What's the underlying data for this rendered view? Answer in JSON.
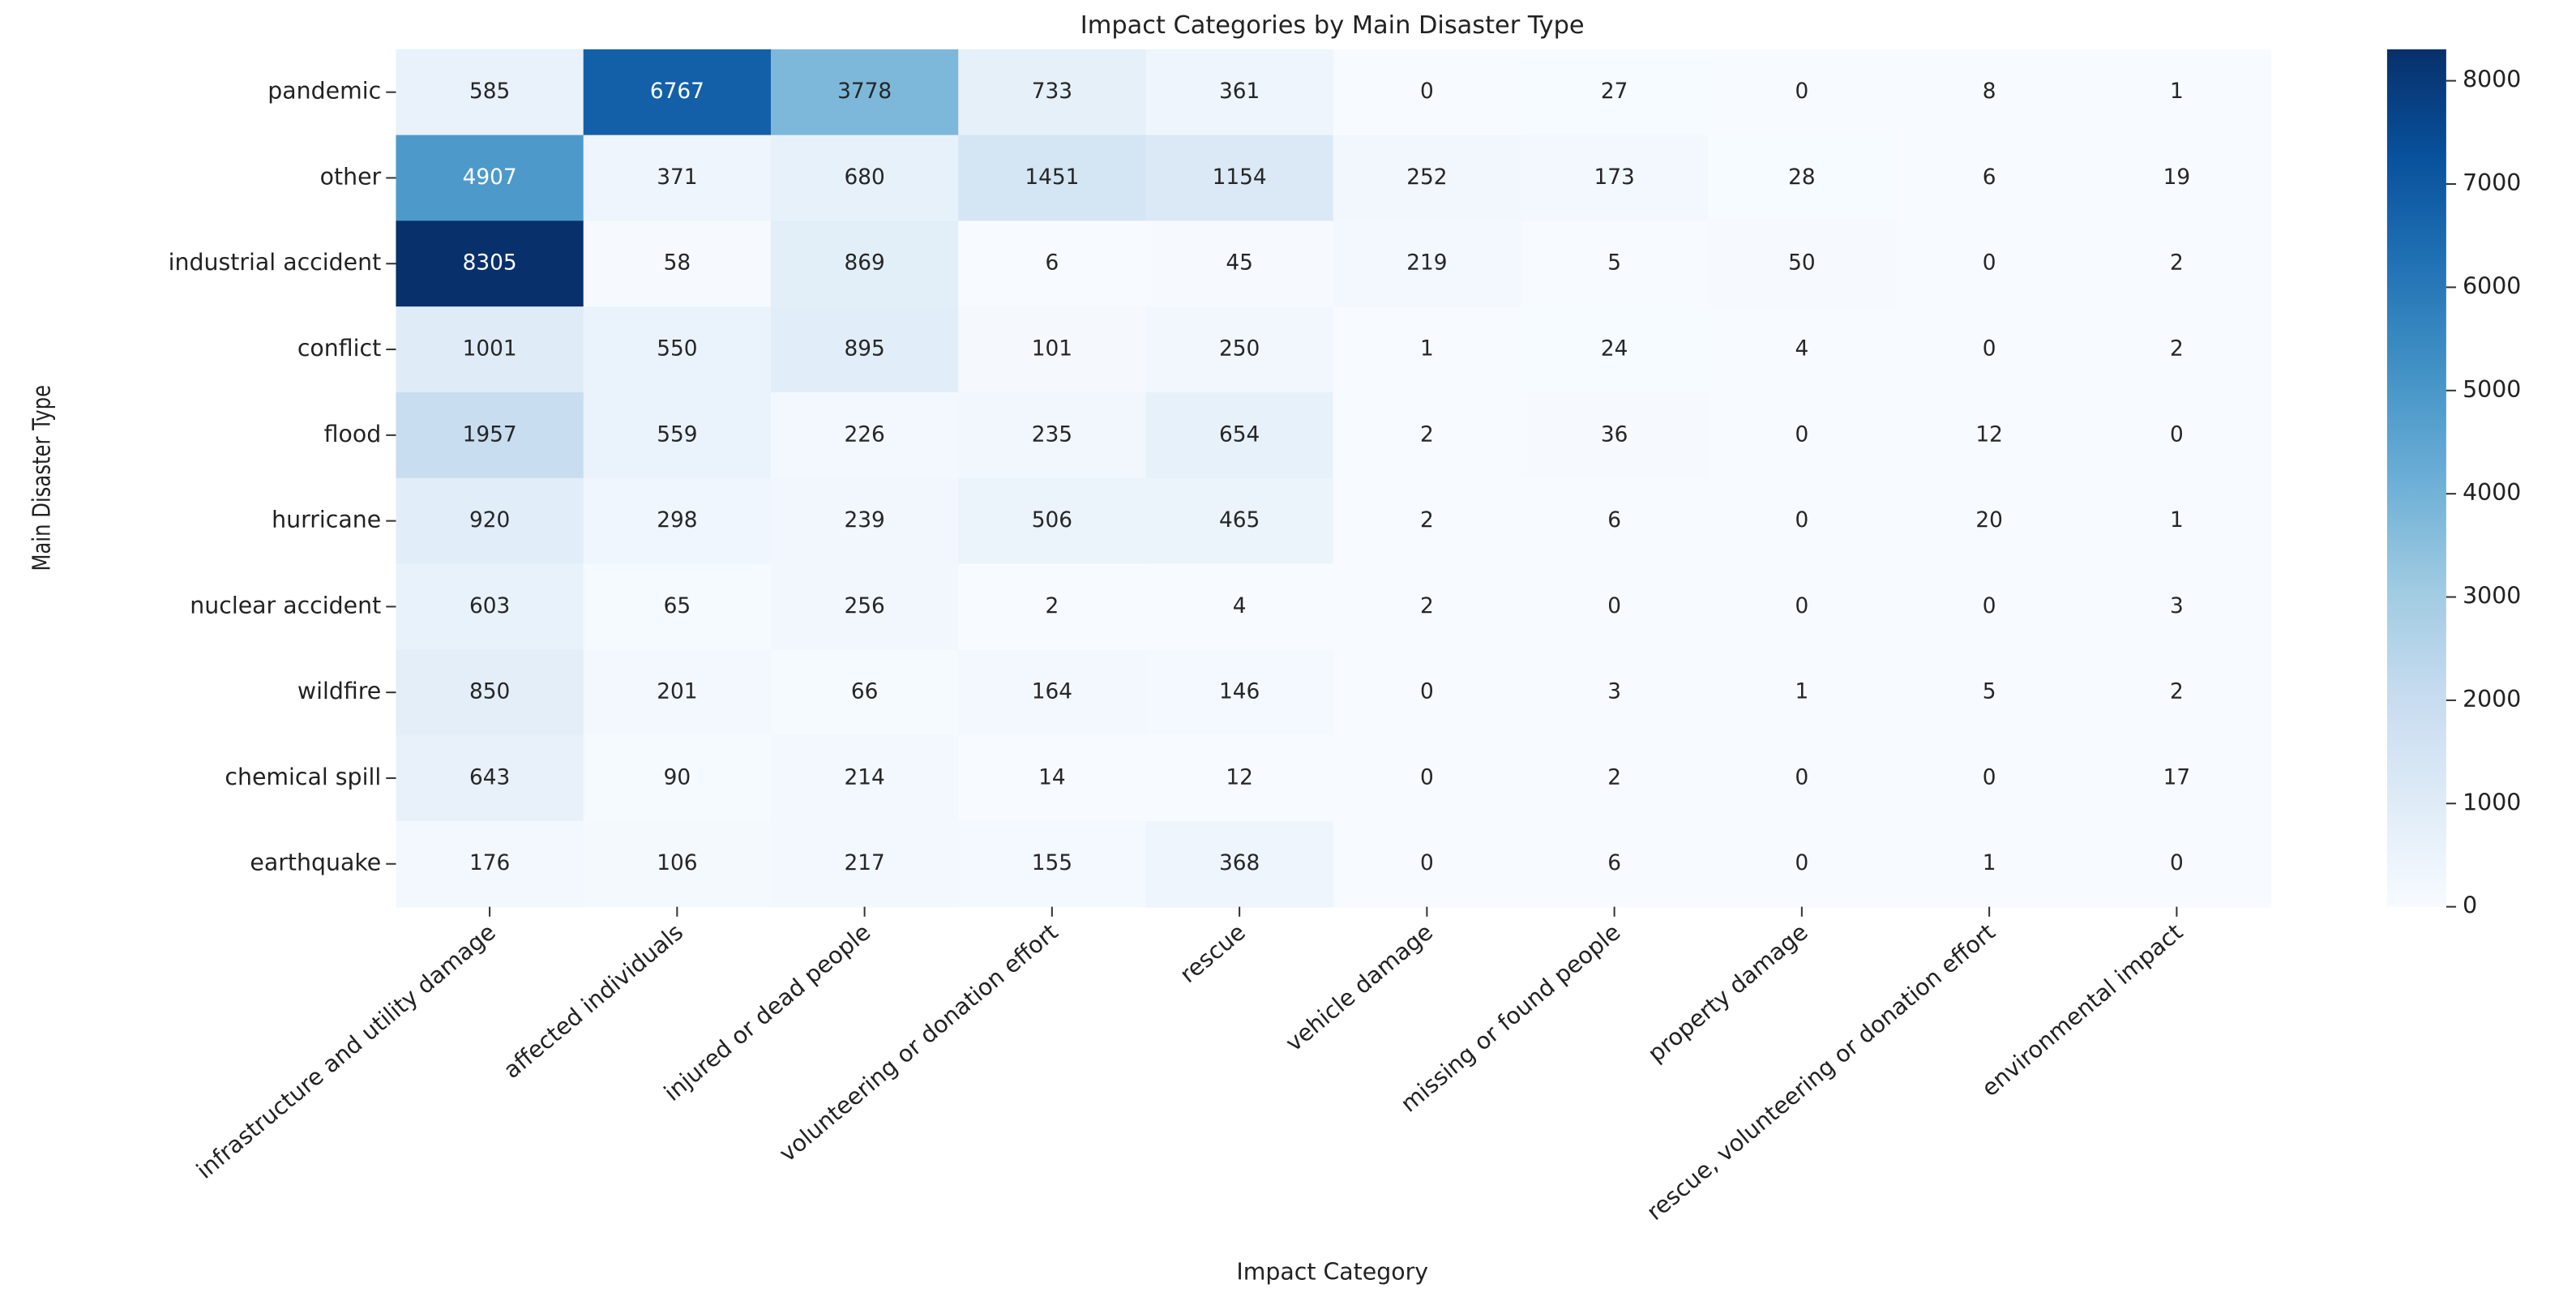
{
  "chart_data": {
    "type": "heatmap",
    "title": "Impact Categories by Main Disaster Type",
    "xlabel": "Impact Category",
    "ylabel": "Main Disaster Type",
    "x": [
      "infrastructure and utility damage",
      "affected individuals",
      "injured or dead people",
      "volunteering or donation effort",
      "rescue",
      "vehicle damage",
      "missing or found people",
      "property damage",
      "rescue, volunteering or donation effort",
      "environmental impact"
    ],
    "y": [
      "pandemic",
      "other",
      "industrial accident",
      "conflict",
      "flood",
      "hurricane",
      "nuclear accident",
      "wildfire",
      "chemical spill",
      "earthquake"
    ],
    "values": [
      [
        585,
        6767,
        3778,
        733,
        361,
        0,
        27,
        0,
        8,
        1
      ],
      [
        4907,
        371,
        680,
        1451,
        1154,
        252,
        173,
        28,
        6,
        19
      ],
      [
        8305,
        58,
        869,
        6,
        45,
        219,
        5,
        50,
        0,
        2
      ],
      [
        1001,
        550,
        895,
        101,
        250,
        1,
        24,
        4,
        0,
        2
      ],
      [
        1957,
        559,
        226,
        235,
        654,
        2,
        36,
        0,
        12,
        0
      ],
      [
        920,
        298,
        239,
        506,
        465,
        2,
        6,
        0,
        20,
        1
      ],
      [
        603,
        65,
        256,
        2,
        4,
        2,
        0,
        0,
        0,
        3
      ],
      [
        850,
        201,
        66,
        164,
        146,
        0,
        3,
        1,
        5,
        2
      ],
      [
        643,
        90,
        214,
        14,
        12,
        0,
        2,
        0,
        0,
        17
      ],
      [
        176,
        106,
        217,
        155,
        368,
        0,
        6,
        0,
        1,
        0
      ]
    ],
    "colormap": [
      "#f7fbff",
      "#deebf7",
      "#c6dbef",
      "#9ecae1",
      "#6baed6",
      "#4292c6",
      "#2171b5",
      "#08519c",
      "#08306b"
    ],
    "clim": [
      0,
      8305
    ],
    "cticks": [
      0,
      1000,
      2000,
      3000,
      4000,
      5000,
      6000,
      7000,
      8000
    ]
  }
}
